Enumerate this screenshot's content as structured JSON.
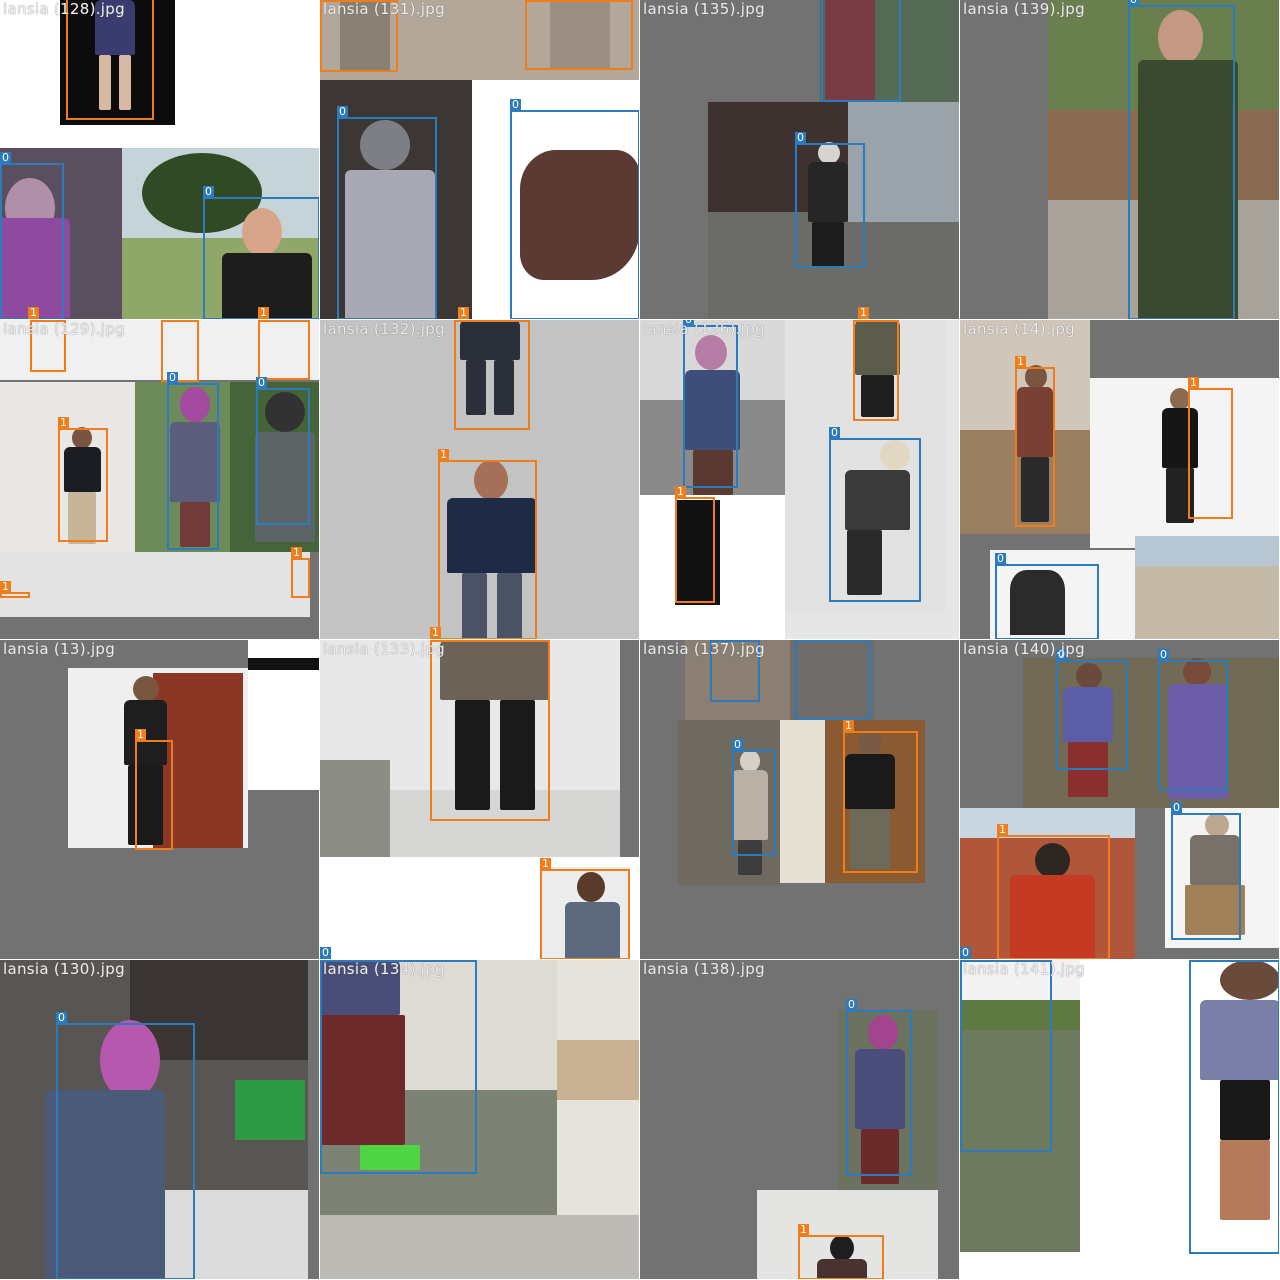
{
  "grid": {
    "tiles": [
      {
        "name": "lansia (128).jpg"
      },
      {
        "name": "lansia (131).jpg"
      },
      {
        "name": "lansia (135).jpg"
      },
      {
        "name": "lansia (139).jpg"
      },
      {
        "name": "lansia (129).jpg"
      },
      {
        "name": "lansia (132).jpg"
      },
      {
        "name": "lansia (136).jpg"
      },
      {
        "name": "lansia (14).jpg"
      },
      {
        "name": "lansia (13).jpg"
      },
      {
        "name": "lansia (133).jpg"
      },
      {
        "name": "lansia (137).jpg"
      },
      {
        "name": "lansia (140).jpg"
      },
      {
        "name": "lansia (130).jpg"
      },
      {
        "name": "lansia (134).jpg"
      },
      {
        "name": "lansia (138).jpg"
      },
      {
        "name": "lansia (141).jpg"
      }
    ]
  },
  "class_labels": {
    "c0": "0",
    "c1": "1"
  },
  "colors": {
    "class_0": "#2c7bbd",
    "class_1": "#ef7d1c",
    "padding": "#727272"
  }
}
